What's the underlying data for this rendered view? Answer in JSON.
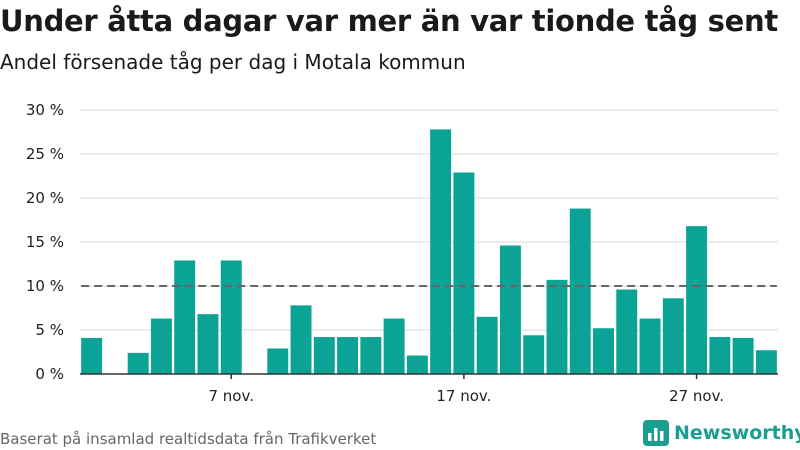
{
  "header": {
    "title": "Under åtta dagar var mer än var tionde tåg sent",
    "subtitle": "Andel försenade tåg per dag i Motala kommun"
  },
  "footer": {
    "source": "Baserat på insamlad realtidsdata från Trafikverket",
    "brand": "Newsworthy",
    "brand_icon": "bar-chart-logo-icon"
  },
  "colors": {
    "bar": "#0aa396",
    "reference_line": "#666666",
    "grid": "#d9d9d9",
    "brand": "#1a9e90"
  },
  "chart_data": {
    "type": "bar",
    "title": "Under åtta dagar var mer än var tionde tåg sent",
    "subtitle": "Andel försenade tåg per dag i Motala kommun",
    "xlabel": "",
    "ylabel": "",
    "x": [
      1,
      2,
      3,
      4,
      5,
      6,
      7,
      8,
      9,
      10,
      11,
      12,
      13,
      14,
      15,
      16,
      17,
      18,
      19,
      20,
      21,
      22,
      23,
      24,
      25,
      26,
      27,
      28,
      29,
      30
    ],
    "values": [
      4.1,
      0,
      2.4,
      6.3,
      12.9,
      6.8,
      12.9,
      0,
      2.9,
      7.8,
      4.2,
      4.2,
      4.2,
      6.3,
      2.1,
      27.8,
      22.9,
      6.5,
      14.6,
      4.4,
      10.7,
      18.8,
      5.2,
      9.6,
      6.3,
      8.6,
      16.8,
      4.2,
      4.1,
      2.7
    ],
    "x_ticks": [
      {
        "x": 7,
        "label": "7 nov."
      },
      {
        "x": 17,
        "label": "17 nov."
      },
      {
        "x": 27,
        "label": "27 nov."
      }
    ],
    "y_ticks": [
      {
        "value": 0,
        "label": "0 %"
      },
      {
        "value": 5,
        "label": "5 %"
      },
      {
        "value": 10,
        "label": "10 %"
      },
      {
        "value": 15,
        "label": "15 %"
      },
      {
        "value": 20,
        "label": "20 %"
      },
      {
        "value": 25,
        "label": "25 %"
      },
      {
        "value": 30,
        "label": "30 %"
      }
    ],
    "ylim": [
      0,
      30
    ],
    "xlim": [
      0.5,
      30.5
    ],
    "reference_line": {
      "value": 10,
      "style": "dashed"
    },
    "grid": true,
    "legend": "none"
  }
}
